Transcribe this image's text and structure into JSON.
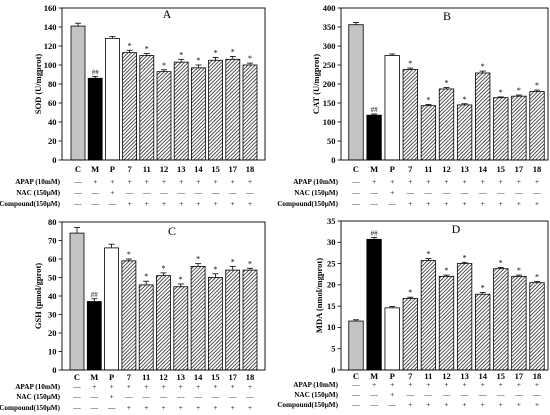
{
  "chart_data": [
    {
      "type": "bar",
      "title": "A",
      "ylabel": "SOD (U/mgprot)",
      "ylim": [
        0,
        160
      ],
      "yticks": [
        0,
        20,
        40,
        60,
        80,
        100,
        120,
        140,
        160
      ],
      "categories": [
        "C",
        "M",
        "P",
        "7",
        "11",
        "12",
        "13",
        "14",
        "15",
        "17",
        "18"
      ],
      "values": [
        141,
        86,
        128,
        113,
        110,
        93,
        103,
        97,
        105,
        106,
        100
      ],
      "errors": [
        3,
        2,
        2,
        2.5,
        2,
        2,
        3,
        3,
        3,
        3,
        2
      ],
      "annotations": [
        "",
        "##",
        "",
        "*",
        "*",
        "*",
        "*",
        "*",
        "*",
        "*",
        "*"
      ],
      "treatments": [
        {
          "label": "APAP (10mM)",
          "marks": [
            "—",
            "+",
            "+",
            "+",
            "+",
            "+",
            "+",
            "+",
            "+",
            "+",
            "+"
          ]
        },
        {
          "label": "NAC (150μM)",
          "marks": [
            "—",
            "—",
            "+",
            "—",
            "—",
            "—",
            "—",
            "—",
            "—",
            "—",
            "—"
          ]
        },
        {
          "label": "Compound(150μM)",
          "marks": [
            "—",
            "—",
            "—",
            "+",
            "+",
            "+",
            "+",
            "+",
            "+",
            "+",
            "+"
          ]
        }
      ],
      "grid": false
    },
    {
      "type": "bar",
      "title": "B",
      "ylabel": "CAT (U/mgprot)",
      "ylim": [
        0,
        400
      ],
      "yticks": [
        0,
        50,
        100,
        150,
        200,
        250,
        300,
        350,
        400
      ],
      "categories": [
        "C",
        "M",
        "P",
        "7",
        "11",
        "12",
        "13",
        "14",
        "15",
        "17",
        "18"
      ],
      "values": [
        356,
        118,
        275,
        238,
        143,
        187,
        145,
        229,
        164,
        168,
        180
      ],
      "errors": [
        6,
        3,
        4,
        4,
        3,
        4,
        3,
        5,
        2,
        3,
        4
      ],
      "annotations": [
        "",
        "##",
        "",
        "*",
        "*",
        "*",
        "*",
        "*",
        "*",
        "*",
        "*"
      ],
      "treatments": [
        {
          "label": "APAP (10mM)",
          "marks": [
            "—",
            "+",
            "+",
            "+",
            "+",
            "+",
            "+",
            "+",
            "+",
            "+",
            "+"
          ]
        },
        {
          "label": "NAC (150μM)",
          "marks": [
            "—",
            "—",
            "+",
            "—",
            "—",
            "—",
            "—",
            "—",
            "—",
            "—",
            "—"
          ]
        },
        {
          "label": "Compound(150μM)",
          "marks": [
            "—",
            "—",
            "—",
            "+",
            "+",
            "+",
            "+",
            "+",
            "+",
            "+",
            "+"
          ]
        }
      ],
      "grid": false
    },
    {
      "type": "bar",
      "title": "C",
      "ylabel": "GSH (μmol/gprot)",
      "ylim": [
        0,
        80
      ],
      "yticks": [
        0,
        10,
        20,
        30,
        40,
        50,
        60,
        70,
        80
      ],
      "categories": [
        "C",
        "M",
        "P",
        "7",
        "11",
        "12",
        "13",
        "14",
        "15",
        "17",
        "18"
      ],
      "values": [
        74,
        37,
        66,
        59,
        46,
        51,
        45,
        56,
        50,
        54,
        54
      ],
      "errors": [
        3,
        1.5,
        2,
        1,
        2,
        1.5,
        1.5,
        1.5,
        2,
        2,
        1
      ],
      "annotations": [
        "",
        "##",
        "",
        "*",
        "*",
        "*",
        "*",
        "*",
        "*",
        "*",
        "*"
      ],
      "treatments": [
        {
          "label": "APAP (10mM)",
          "marks": [
            "—",
            "+",
            "+",
            "+",
            "+",
            "+",
            "+",
            "+",
            "+",
            "+",
            "+"
          ]
        },
        {
          "label": "NAC (150μM)",
          "marks": [
            "—",
            "—",
            "+",
            "—",
            "—",
            "—",
            "—",
            "—",
            "—",
            "—",
            "—"
          ]
        },
        {
          "label": "Compound(150μM)",
          "marks": [
            "—",
            "—",
            "—",
            "+",
            "+",
            "+",
            "+",
            "+",
            "+",
            "+",
            "+"
          ]
        }
      ],
      "grid": false
    },
    {
      "type": "bar",
      "title": "D",
      "ylabel": "MDA (nmol/mgprot)",
      "ylim": [
        0,
        35
      ],
      "yticks": [
        0,
        5,
        10,
        15,
        20,
        25,
        30,
        35
      ],
      "categories": [
        "C",
        "M",
        "P",
        "7",
        "11",
        "12",
        "13",
        "14",
        "15",
        "17",
        "18"
      ],
      "values": [
        11.5,
        30.7,
        14.6,
        16.8,
        25.7,
        22.0,
        25.0,
        17.8,
        23.8,
        22.0,
        20.5
      ],
      "errors": [
        0.3,
        0.4,
        0.3,
        0.3,
        0.5,
        0.3,
        0.3,
        0.4,
        0.3,
        0.3,
        0.3
      ],
      "annotations": [
        "",
        "##",
        "",
        "*",
        "*",
        "*",
        "*",
        "*",
        "*",
        "*",
        "*"
      ],
      "treatments": [
        {
          "label": "APAP (10mM)",
          "marks": [
            "—",
            "+",
            "+",
            "+",
            "+",
            "+",
            "+",
            "+",
            "+",
            "+",
            "+"
          ]
        },
        {
          "label": "NAC (150μM)",
          "marks": [
            "—",
            "—",
            "+",
            "—",
            "—",
            "—",
            "—",
            "—",
            "—",
            "—",
            "—"
          ]
        },
        {
          "label": "Compound(150μM)",
          "marks": [
            "—",
            "—",
            "—",
            "+",
            "+",
            "+",
            "+",
            "+",
            "+",
            "+",
            "+"
          ]
        }
      ],
      "grid": false
    }
  ],
  "colors": {
    "control": "#c4c4c4",
    "model": "#000000",
    "positive": "#ffffff",
    "compound": "#2e2e2e",
    "axis": "#000000"
  }
}
